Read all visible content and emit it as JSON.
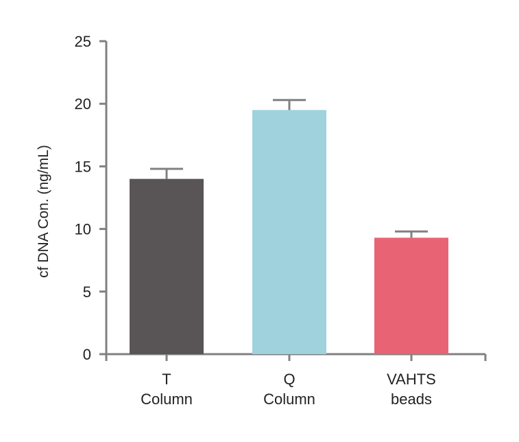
{
  "chart_data": {
    "type": "bar",
    "title": "",
    "xlabel": "",
    "ylabel": "cf DNA Con. (ng/mL)",
    "ylim": [
      0,
      25
    ],
    "yticks": [
      0,
      5,
      10,
      15,
      20,
      25
    ],
    "grid": false,
    "categories": [
      [
        "T",
        "Column"
      ],
      [
        "Q",
        "Column"
      ],
      [
        "VAHTS",
        "beads"
      ]
    ],
    "values": [
      14.0,
      19.5,
      9.3
    ],
    "error_upper": [
      0.8,
      0.8,
      0.5
    ],
    "colors": [
      "#595556",
      "#9fd2dc",
      "#e86474"
    ],
    "axis_color": "#808080"
  }
}
